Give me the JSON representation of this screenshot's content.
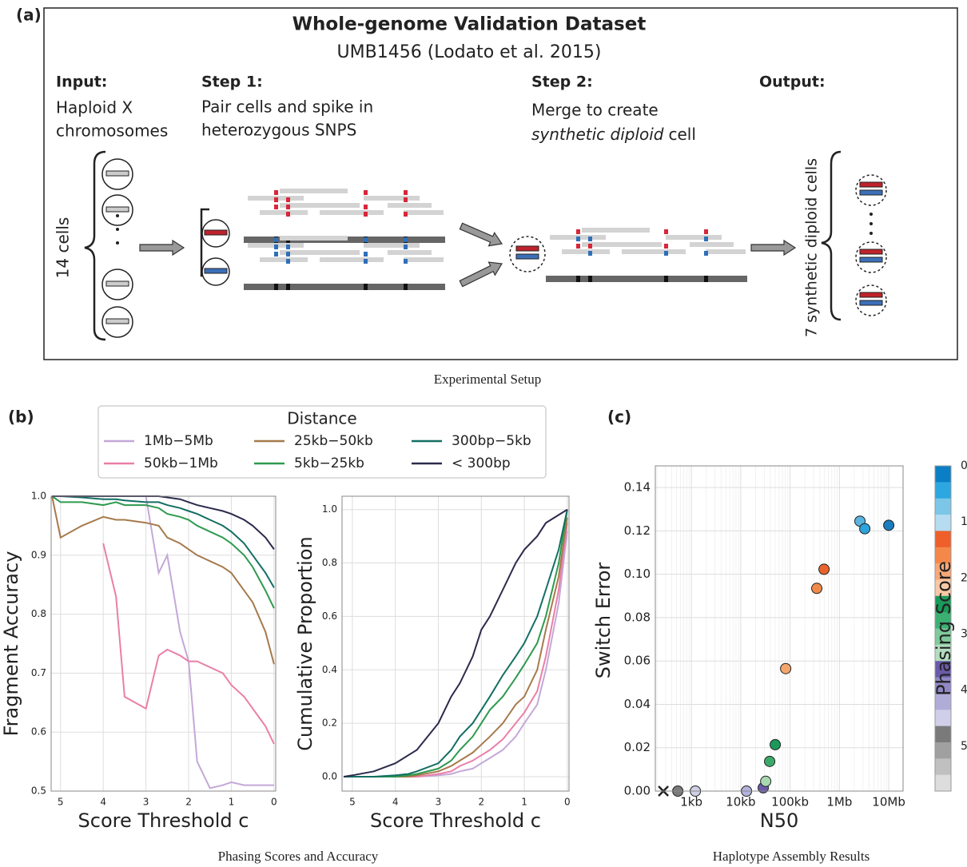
{
  "panel_labels": [
    "(a)",
    "(b)",
    "(c)"
  ],
  "captions": [
    "Experimental Setup",
    "Phasing Scores and Accuracy",
    "Haplotype Assembly Results"
  ],
  "panel_a": {
    "title": "Whole-genome Validation Dataset",
    "subtitle": "UMB1456 (Lodato et al. 2015)",
    "input": {
      "heading": "Input:",
      "lines": [
        "Haploid X",
        "chromosomes"
      ]
    },
    "step1": {
      "heading": "Step 1:",
      "lines": [
        "Pair cells and spike in",
        "heterozygous SNPS"
      ]
    },
    "step2": {
      "heading": "Step 2:",
      "line1": "Merge to create",
      "line2_italic": "synthetic diploid",
      "line2_rest": "cell"
    },
    "output": {
      "heading": "Output:"
    },
    "left_count": "14 cells",
    "right_count": "7 synthetic diploid cells"
  },
  "chart_data": [
    {
      "type": "line",
      "y_label": "Fragment Accuracy",
      "x_label": "Score Threshold c",
      "legend_title": "Distance",
      "x": [
        5.2,
        5,
        4.5,
        4,
        3.7,
        3.5,
        3,
        2.7,
        2.5,
        2.2,
        2,
        1.8,
        1.5,
        1.2,
        1,
        0.7,
        0.5,
        0.2,
        0
      ],
      "xlim": [
        5.22,
        -0.04
      ],
      "xticks": [
        5,
        4,
        3,
        2,
        1,
        0
      ],
      "ylim": [
        0.5,
        1.0
      ],
      "yticks": [
        0.5,
        0.6,
        0.7,
        0.8,
        0.9,
        {
          "value": 1,
          "label": "1.0"
        }
      ],
      "grid": true,
      "series": [
        {
          "name": "1Mb−5Mb",
          "color": "#c4a8d8",
          "values": [
            1,
            1,
            1,
            1,
            1,
            1,
            1,
            0.87,
            0.9,
            0.77,
            0.72,
            0.55,
            0.505,
            0.51,
            0.515,
            0.51,
            0.51,
            0.51,
            0.51
          ]
        },
        {
          "name": "50kb−1Mb",
          "color": "#ea7fa8",
          "values": [
            null,
            null,
            null,
            0.92,
            0.83,
            0.66,
            0.64,
            0.73,
            0.74,
            0.73,
            0.72,
            0.72,
            0.71,
            0.7,
            0.68,
            0.66,
            0.64,
            0.61,
            0.58
          ]
        },
        {
          "name": "25kb−50kb",
          "color": "#a67a4c",
          "values": [
            1,
            0.93,
            0.95,
            0.965,
            0.96,
            0.96,
            0.955,
            0.95,
            0.93,
            0.92,
            0.91,
            0.9,
            0.89,
            0.88,
            0.87,
            0.84,
            0.82,
            0.77,
            0.715
          ]
        },
        {
          "name": "5kb−25kb",
          "color": "#2e9a4e",
          "values": [
            1,
            0.99,
            0.99,
            0.985,
            0.99,
            0.985,
            0.985,
            0.98,
            0.97,
            0.965,
            0.96,
            0.95,
            0.94,
            0.93,
            0.92,
            0.9,
            0.88,
            0.84,
            0.81
          ]
        },
        {
          "name": "300bp−5kb",
          "color": "#136f63",
          "values": [
            1,
            1,
            0.998,
            0.995,
            0.995,
            0.993,
            0.99,
            0.99,
            0.985,
            0.98,
            0.975,
            0.97,
            0.96,
            0.95,
            0.94,
            0.92,
            0.9,
            0.87,
            0.845
          ]
        },
        {
          "name": "< 300bp",
          "color": "#2b2a4c",
          "values": [
            1,
            1,
            1,
            1,
            1,
            1,
            1,
            1,
            0.998,
            0.995,
            0.99,
            0.985,
            0.98,
            0.975,
            0.97,
            0.96,
            0.95,
            0.93,
            0.91
          ]
        }
      ]
    },
    {
      "type": "line",
      "y_label": "Cumulative Proportion",
      "x_label": "Score Threshold c",
      "x": [
        5.2,
        5,
        4.5,
        4,
        3.7,
        3.5,
        3,
        2.7,
        2.5,
        2.2,
        2,
        1.8,
        1.5,
        1.2,
        1,
        0.7,
        0.5,
        0.2,
        0
      ],
      "xlim": [
        5.24,
        -0.04
      ],
      "xticks": [
        5,
        4,
        3,
        2,
        1,
        0
      ],
      "ylim": [
        -0.054,
        1.05
      ],
      "yticks": [
        {
          "value": 0,
          "label": "0.0"
        },
        0.2,
        0.4,
        0.6,
        0.8,
        {
          "value": 1,
          "label": "1.0"
        }
      ],
      "grid": true,
      "series": [
        {
          "color": "#c4a8d8",
          "values": [
            0,
            0,
            0,
            0,
            0,
            0,
            0.005,
            0.01,
            0.02,
            0.03,
            0.05,
            0.07,
            0.1,
            0.15,
            0.2,
            0.27,
            0.4,
            0.65,
            0.92
          ]
        },
        {
          "color": "#ea7fa8",
          "values": [
            0,
            0,
            0,
            0,
            0,
            0,
            0.01,
            0.02,
            0.04,
            0.06,
            0.08,
            0.1,
            0.14,
            0.2,
            0.24,
            0.32,
            0.45,
            0.7,
            0.95
          ]
        },
        {
          "color": "#a67a4c",
          "values": [
            0,
            0,
            0,
            0,
            0,
            0.005,
            0.02,
            0.04,
            0.06,
            0.09,
            0.12,
            0.15,
            0.2,
            0.27,
            0.3,
            0.4,
            0.55,
            0.75,
            0.97
          ]
        },
        {
          "color": "#2e9a4e",
          "values": [
            0,
            0,
            0,
            0,
            0.005,
            0.01,
            0.03,
            0.06,
            0.1,
            0.15,
            0.2,
            0.25,
            0.3,
            0.37,
            0.42,
            0.5,
            0.6,
            0.8,
            1
          ]
        },
        {
          "color": "#136f63",
          "values": [
            0,
            0,
            0,
            0.005,
            0.01,
            0.02,
            0.05,
            0.1,
            0.15,
            0.2,
            0.25,
            0.3,
            0.38,
            0.45,
            0.5,
            0.6,
            0.7,
            0.85,
            1
          ]
        },
        {
          "color": "#2b2a4c",
          "values": [
            0,
            0.005,
            0.02,
            0.05,
            0.08,
            0.1,
            0.2,
            0.3,
            0.35,
            0.45,
            0.55,
            0.6,
            0.7,
            0.8,
            0.85,
            0.9,
            0.95,
            0.98,
            1
          ]
        }
      ]
    },
    {
      "type": "scatter",
      "y_label": "Switch Error",
      "x_label": "N50",
      "xscale": "log",
      "xlim": [
        186,
        19500000
      ],
      "xticks": [
        {
          "value": 1000,
          "label": "1kb"
        },
        {
          "value": 10000,
          "label": "10kb"
        },
        {
          "value": 100000,
          "label": "100kb"
        },
        {
          "value": 1000000,
          "label": "1Mb"
        },
        {
          "value": 10000000,
          "label": "10Mb"
        }
      ],
      "ylim": [
        0,
        0.15
      ],
      "yticks": [
        {
          "value": 0,
          "label": "0.00"
        },
        0.02,
        0.04,
        0.06,
        0.08,
        {
          "value": 0.1,
          "label": "0.10"
        },
        0.12,
        0.14
      ],
      "grid": true,
      "minor_grid": true,
      "x": [
        271,
        531,
        1205,
        13100,
        28600,
        32100,
        38600,
        50100,
        81500,
        348000,
        488000,
        2610000,
        3270000,
        10000000
      ],
      "values": [
        0,
        0,
        0,
        0,
        0.0015,
        0.0045,
        0.0137,
        0.0214,
        0.0565,
        0.0935,
        0.1023,
        0.1245,
        0.121,
        0.1226
      ],
      "markers": [
        "x",
        "o",
        "o",
        "o",
        "o",
        "o",
        "o",
        "o",
        "o",
        "o",
        "o",
        "o",
        "o",
        "o"
      ],
      "colors": [
        "#222222",
        "#7a7a7a",
        "#cfcfe6",
        "#b3b3dd",
        "#6a5aaa",
        "#a8d8b0",
        "#3aaa6a",
        "#1a9a5a",
        "#f3a56e",
        "#f08a4b",
        "#e8642c",
        "#5ab4e0",
        "#2ba3dc",
        "#1a7dc0"
      ],
      "colorbar": {
        "label": "Phasing Score",
        "clim": [
          0,
          5.8
        ],
        "ticks": [
          0,
          1,
          2,
          3,
          4,
          5
        ],
        "colors": [
          "#0b7fc5",
          "#2ca7e0",
          "#7cc6e8",
          "#b5dcf0",
          "#ee5f2a",
          "#f4884a",
          "#f7a877",
          "#f9c8a4",
          "#1a9a5a",
          "#3cb073",
          "#7ec99a",
          "#b3ddc0",
          "#6a5aa8",
          "#8f88c4",
          "#b0acd8",
          "#d0cee8",
          "#7a7a7a",
          "#a0a0a0",
          "#c0c0c0",
          "#dddddd"
        ]
      }
    }
  ]
}
